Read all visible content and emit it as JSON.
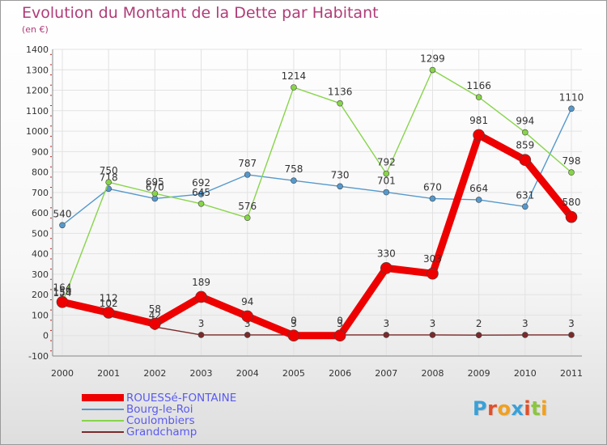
{
  "header": {
    "title": "Evolution du Montant de la Dette par Habitant",
    "subtitle": "(en €)"
  },
  "logo": {
    "text": "Proxiti",
    "letter_colors": [
      "#3aa0d8",
      "#e0502a",
      "#f0a020",
      "#3aa0d8",
      "#e0502a",
      "#8cc63f",
      "#f0a020"
    ]
  },
  "colors": {
    "title": "#b03c78",
    "legend_text": "#5a5af0",
    "axis_text": "#333333"
  },
  "chart_data": {
    "type": "line",
    "title": "Evolution du Montant de la Dette par Habitant",
    "subtitle": "(en €)",
    "x": [
      "2000",
      "2001",
      "2002",
      "2003",
      "2004",
      "2005",
      "2006",
      "2007",
      "2008",
      "2009",
      "2010",
      "2011"
    ],
    "ylim": [
      -100,
      1400
    ],
    "yticks": [
      -100,
      0,
      100,
      200,
      300,
      400,
      500,
      600,
      700,
      800,
      900,
      1000,
      1100,
      1200,
      1300,
      1400
    ],
    "grid": true,
    "legend_position": "bottom-left",
    "series": [
      {
        "name": "Bourg-le-Roi",
        "color": "#5599cc",
        "values": [
          540,
          718,
          670,
          692,
          787,
          758,
          730,
          701,
          670,
          664,
          631,
          1110
        ],
        "labels": [
          "540",
          "718",
          "670",
          "692",
          "787",
          "758",
          "730",
          "701",
          "670",
          "664",
          "631",
          "1110"
        ]
      },
      {
        "name": "Coulombiers",
        "color": "#88d44a",
        "values": [
          159,
          750,
          695,
          645,
          576,
          1214,
          1136,
          792,
          1299,
          1166,
          994,
          798
        ],
        "labels": [
          "159",
          "750",
          "695",
          "645",
          "576",
          "1214",
          "1136",
          "792",
          "1299",
          "1166",
          "994",
          "798"
        ]
      },
      {
        "name": "Grandchamp",
        "color": "#7a2a2a",
        "values": [
          154,
          102,
          42,
          3,
          3,
          3,
          3,
          3,
          3,
          2,
          3,
          3
        ],
        "labels": [
          "154",
          "102",
          "42",
          "3",
          "3",
          "3",
          "3",
          "3",
          "3",
          "2",
          "3",
          "3"
        ]
      },
      {
        "name": "ROUESSé-FONTAINE",
        "color": "#ee0000",
        "values": [
          164,
          112,
          58,
          189,
          94,
          0,
          0,
          330,
          303,
          981,
          859,
          580
        ],
        "labels": [
          "164",
          "112",
          "58",
          "189",
          "94",
          "0",
          "0",
          "330",
          "303",
          "981",
          "859",
          "580"
        ]
      }
    ],
    "legend": [
      "ROUESSé-FONTAINE",
      "Bourg-le-Roi",
      "Coulombiers",
      "Grandchamp"
    ]
  }
}
